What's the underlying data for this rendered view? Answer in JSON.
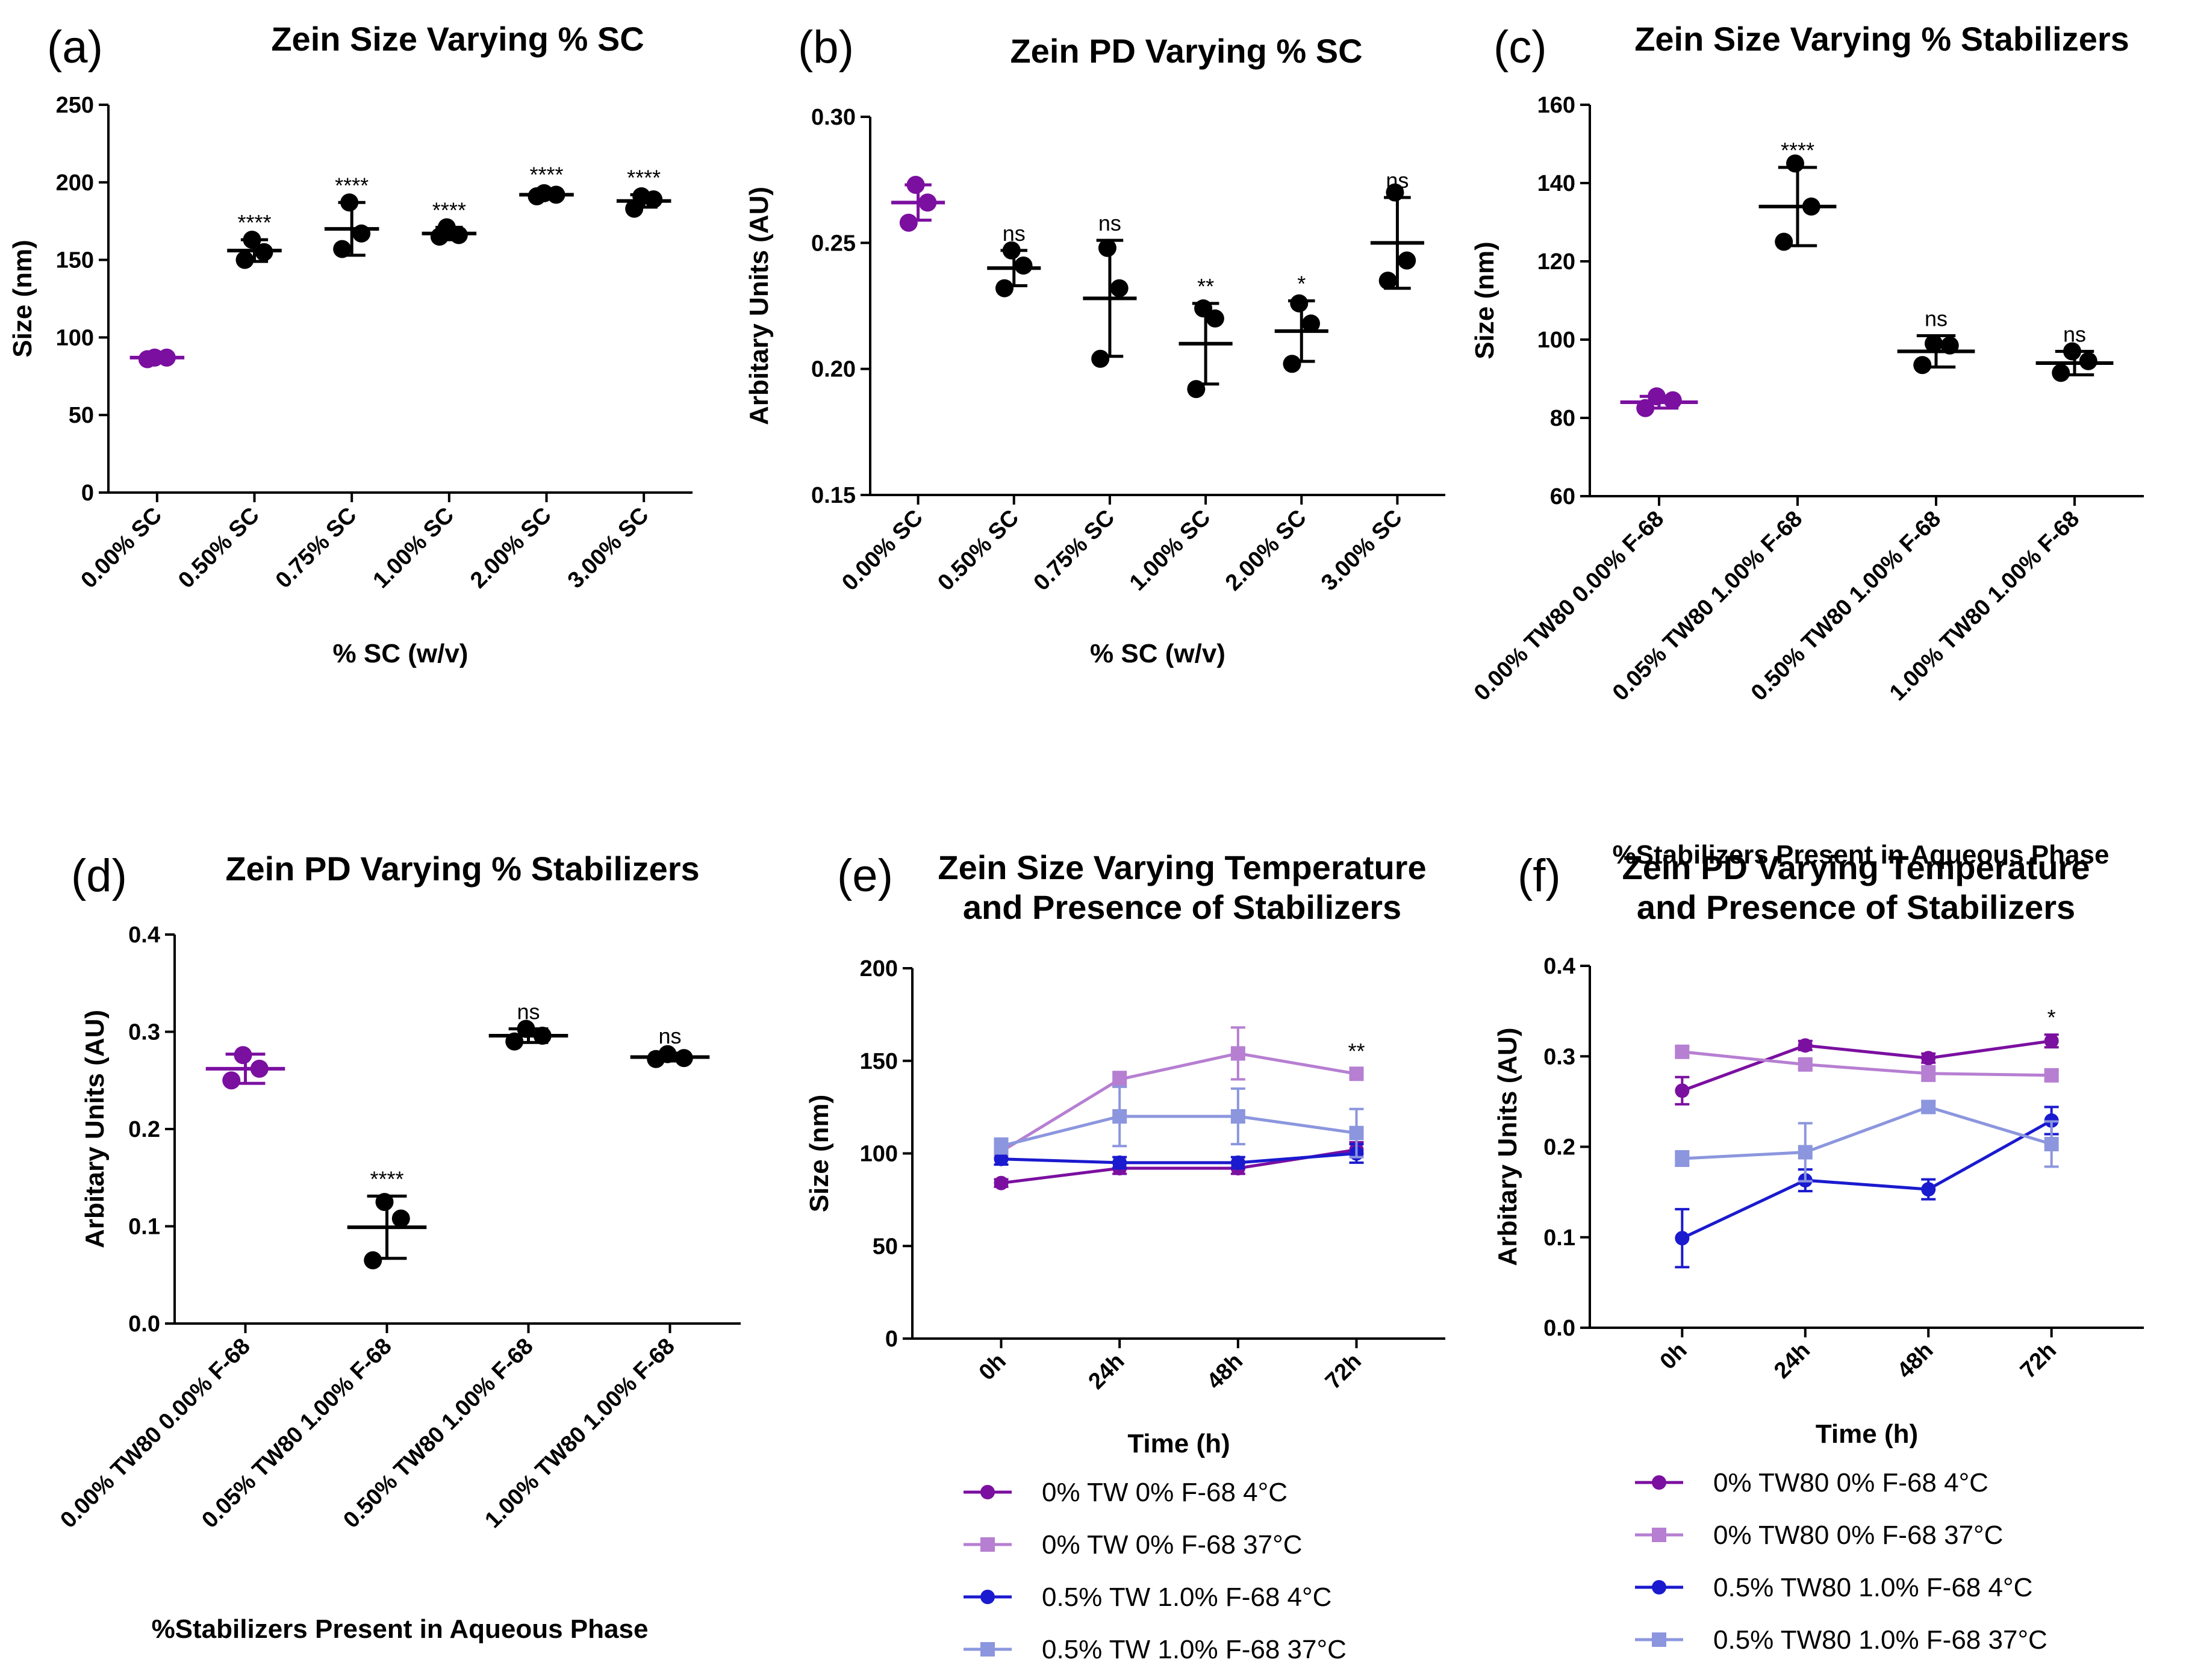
{
  "figure": {
    "colors": {
      "purple": "#7B0FA0",
      "lavender": "#B67FD2",
      "blue": "#1A1ACF",
      "periwinkle": "#8C96DE",
      "black": "#000000"
    }
  },
  "chart_data": [
    {
      "id": "a",
      "panel_label": "(a)",
      "type": "scatter",
      "title": "Zein Size Varying % SC",
      "xlabel": "% SC (w/v)",
      "ylabel": "Size (nm)",
      "ylim": [
        0,
        250
      ],
      "yticks": [
        "0",
        "50",
        "100",
        "150",
        "200",
        "250"
      ],
      "categories": [
        "0.00% SC",
        "0.50% SC",
        "0.75% SC",
        "1.00% SC",
        "2.00% SC",
        "3.00% SC"
      ],
      "groups": [
        {
          "mean": 87,
          "sd": 1,
          "points": [
            87,
            86,
            87
          ],
          "sig": ""
        },
        {
          "mean": 156,
          "sd": 7,
          "points": [
            163,
            150,
            155
          ],
          "sig": "****"
        },
        {
          "mean": 170,
          "sd": 17,
          "points": [
            187,
            157,
            167
          ],
          "sig": "****"
        },
        {
          "mean": 167,
          "sd": 4,
          "points": [
            171,
            165,
            166
          ],
          "sig": "****"
        },
        {
          "mean": 192,
          "sd": 2,
          "points": [
            193,
            191,
            192
          ],
          "sig": "****"
        },
        {
          "mean": 188,
          "sd": 4,
          "points": [
            191,
            183,
            189
          ],
          "sig": "****"
        }
      ]
    },
    {
      "id": "b",
      "panel_label": "(b)",
      "type": "scatter",
      "title": "Zein PD Varying % SC",
      "xlabel": "% SC (w/v)",
      "ylabel": "Arbitary Units (AU)",
      "ylim": [
        0.15,
        0.3
      ],
      "yticks": [
        "0.15",
        "0.20",
        "0.25",
        "0.30"
      ],
      "categories": [
        "0.00% SC",
        "0.50% SC",
        "0.75% SC",
        "1.00% SC",
        "2.00% SC",
        "3.00% SC"
      ],
      "groups": [
        {
          "mean": 0.266,
          "sd": 0.007,
          "points": [
            0.273,
            0.258,
            0.266
          ],
          "sig": ""
        },
        {
          "mean": 0.24,
          "sd": 0.007,
          "points": [
            0.247,
            0.232,
            0.241
          ],
          "sig": "ns"
        },
        {
          "mean": 0.228,
          "sd": 0.023,
          "points": [
            0.248,
            0.204,
            0.232
          ],
          "sig": "ns"
        },
        {
          "mean": 0.21,
          "sd": 0.016,
          "points": [
            0.224,
            0.192,
            0.22
          ],
          "sig": "**"
        },
        {
          "mean": 0.215,
          "sd": 0.012,
          "points": [
            0.226,
            0.202,
            0.218
          ],
          "sig": "*"
        },
        {
          "mean": 0.25,
          "sd": 0.018,
          "points": [
            0.27,
            0.235,
            0.243
          ],
          "sig": "ns"
        }
      ]
    },
    {
      "id": "c",
      "panel_label": "(c)",
      "type": "scatter",
      "title": "Zein Size Varying % Stabilizers",
      "xlabel": "%Stabilizers Present in Aqueous Phase",
      "ylabel": "Size (nm)",
      "ylim": [
        60,
        160
      ],
      "yticks": [
        "60",
        "80",
        "100",
        "120",
        "140",
        "160"
      ],
      "categories": [
        "0.00% TW80 0.00% F-68",
        "0.05% TW80 1.00% F-68",
        "0.50% TW80 1.00% F-68",
        "1.00% TW80 1.00% F-68"
      ],
      "groups": [
        {
          "mean": 84,
          "sd": 1.5,
          "points": [
            85.5,
            82.5,
            84.5
          ],
          "sig": ""
        },
        {
          "mean": 134,
          "sd": 10,
          "points": [
            145,
            125,
            134
          ],
          "sig": "****"
        },
        {
          "mean": 97,
          "sd": 4,
          "points": [
            99,
            93.5,
            98.5
          ],
          "sig": "ns"
        },
        {
          "mean": 94,
          "sd": 3,
          "points": [
            97,
            91.5,
            94.5
          ],
          "sig": "ns"
        }
      ]
    },
    {
      "id": "d",
      "panel_label": "(d)",
      "type": "scatter",
      "title": "Zein PD Varying % Stabilizers",
      "xlabel": "%Stabilizers Present in Aqueous Phase",
      "ylabel": "Arbitary Units (AU)",
      "ylim": [
        0,
        0.4
      ],
      "yticks": [
        "0.0",
        "0.1",
        "0.2",
        "0.3",
        "0.4"
      ],
      "categories": [
        "0.00% TW80 0.00% F-68",
        "0.05% TW80 1.00% F-68",
        "0.50% TW80 1.00% F-68",
        "1.00% TW80 1.00% F-68"
      ],
      "groups": [
        {
          "mean": 0.262,
          "sd": 0.015,
          "points": [
            0.276,
            0.25,
            0.262
          ],
          "sig": ""
        },
        {
          "mean": 0.099,
          "sd": 0.032,
          "points": [
            0.125,
            0.065,
            0.108
          ],
          "sig": "****"
        },
        {
          "mean": 0.296,
          "sd": 0.007,
          "points": [
            0.303,
            0.29,
            0.296
          ],
          "sig": "ns"
        },
        {
          "mean": 0.274,
          "sd": 0.004,
          "points": [
            0.277,
            0.272,
            0.273
          ],
          "sig": "ns"
        }
      ]
    },
    {
      "id": "e",
      "panel_label": "(e)",
      "type": "line",
      "title_lines": [
        "Zein Size Varying Temperature",
        "and Presence of Stabilizers"
      ],
      "xlabel": "Time (h)",
      "ylabel": "Size (nm)",
      "ylim": [
        0,
        200
      ],
      "yticks": [
        "0",
        "50",
        "100",
        "150",
        "200"
      ],
      "categories": [
        "0h",
        "24h",
        "48h",
        "72h"
      ],
      "annotation": {
        "text": "**",
        "index": 3
      },
      "series": [
        {
          "name": "0% TW 0% F-68 4°C",
          "marker": "circle",
          "color": "#7B0FA0",
          "values": [
            84,
            92,
            92,
            102
          ],
          "errors": [
            2,
            3,
            3,
            4
          ]
        },
        {
          "name": "0% TW 0% F-68 37°C",
          "marker": "square",
          "color": "#B67FD2",
          "values": [
            101,
            140,
            154,
            143
          ],
          "errors": [
            3,
            4,
            14,
            3
          ]
        },
        {
          "name": "0.5% TW 1.0% F-68 4°C",
          "marker": "circle",
          "color": "#1A1ACF",
          "values": [
            97,
            95,
            95,
            100
          ],
          "errors": [
            3,
            3,
            3,
            5
          ]
        },
        {
          "name": "0.5% TW 1.0% F-68 37°C",
          "marker": "square",
          "color": "#8C96DE",
          "values": [
            104,
            120,
            120,
            111
          ],
          "errors": [
            4,
            16,
            15,
            13
          ]
        }
      ]
    },
    {
      "id": "f",
      "panel_label": "(f)",
      "type": "line",
      "title_lines": [
        "Zein PD Varying Temperature",
        "and Presence of Stabilizers"
      ],
      "xlabel": "Time (h)",
      "ylabel": "Arbitary Units (AU)",
      "ylim": [
        0,
        0.4
      ],
      "yticks": [
        "0.0",
        "0.1",
        "0.2",
        "0.3",
        "0.4"
      ],
      "categories": [
        "0h",
        "24h",
        "48h",
        "72h"
      ],
      "annotation": {
        "text": "*",
        "index": 3
      },
      "series": [
        {
          "name": "0% TW80 0% F-68 4°C",
          "marker": "circle",
          "color": "#7B0FA0",
          "values": [
            0.262,
            0.312,
            0.298,
            0.317
          ],
          "errors": [
            0.015,
            0.005,
            0.005,
            0.007
          ]
        },
        {
          "name": "0% TW80 0% F-68 37°C",
          "marker": "square",
          "color": "#B67FD2",
          "values": [
            0.305,
            0.291,
            0.281,
            0.279
          ],
          "errors": [
            0.005,
            0.005,
            0.008,
            0.005
          ]
        },
        {
          "name": "0.5% TW80 1.0% F-68 4°C",
          "marker": "circle",
          "color": "#1A1ACF",
          "values": [
            0.099,
            0.163,
            0.153,
            0.229
          ],
          "errors": [
            0.032,
            0.012,
            0.011,
            0.015
          ]
        },
        {
          "name": "0.5% TW80 1.0% F-68 37°C",
          "marker": "square",
          "color": "#8C96DE",
          "values": [
            0.187,
            0.194,
            0.244,
            0.203
          ],
          "errors": [
            0.008,
            0.032,
            0.006,
            0.025
          ]
        }
      ]
    }
  ]
}
